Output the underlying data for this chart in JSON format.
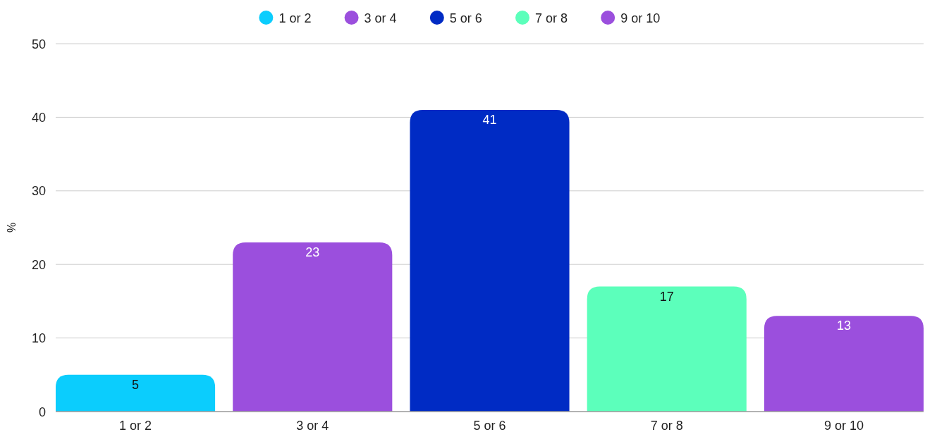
{
  "chart_data": {
    "type": "bar",
    "ylabel": "%",
    "categories": [
      "1 or 2",
      "3 or 4",
      "5 or 6",
      "7 or 8",
      "9 or 10"
    ],
    "series": [
      {
        "name": "1 or 2",
        "color": "#0bcdfd",
        "values": [
          5,
          null,
          null,
          null,
          null
        ]
      },
      {
        "name": "3 or 4",
        "color": "#9b4fdd",
        "values": [
          null,
          23,
          null,
          null,
          null
        ]
      },
      {
        "name": "5 or 6",
        "color": "#002bc4",
        "values": [
          null,
          null,
          41,
          null,
          null
        ]
      },
      {
        "name": "7 or 8",
        "color": "#5cffbb",
        "values": [
          null,
          null,
          null,
          17,
          null
        ]
      },
      {
        "name": "9 or 10",
        "color": "#9b4fdd",
        "values": [
          null,
          null,
          null,
          null,
          13
        ]
      }
    ],
    "stacked": true,
    "ylim": [
      0,
      50
    ],
    "yticks": [
      0,
      10,
      20,
      30,
      40,
      50
    ],
    "grid": "y",
    "data_labels": true,
    "legend": "top"
  }
}
